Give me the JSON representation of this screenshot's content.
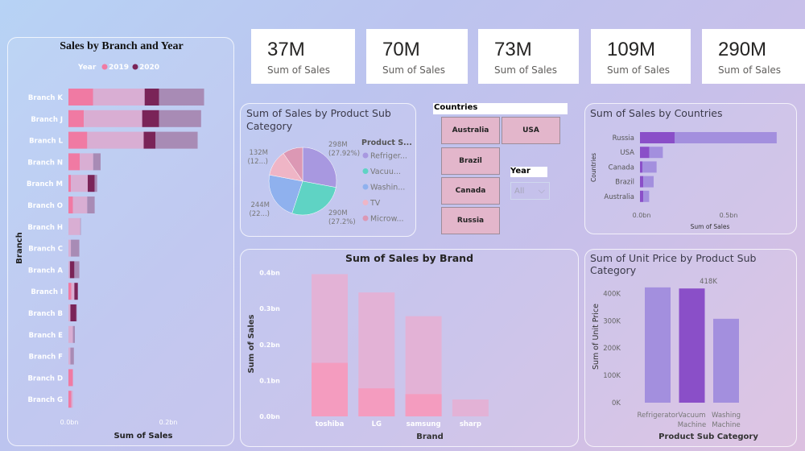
{
  "kpis": [
    {
      "value": "37M",
      "label": "Sum of Sales"
    },
    {
      "value": "70M",
      "label": "Sum of Sales"
    },
    {
      "value": "73M",
      "label": "Sum of Sales"
    },
    {
      "value": "109M",
      "label": "Sum of Sales"
    },
    {
      "value": "290M",
      "label": "Sum of Sales"
    }
  ],
  "slicers": {
    "countries_title": "Countries",
    "countries": [
      "Australia",
      "USA",
      "Brazil",
      "Canada",
      "Russia"
    ],
    "year_title": "Year",
    "year_value": "All"
  },
  "colors": {
    "y2019": "#f07aa3",
    "y2019_rest": "#d9aed3",
    "y2020": "#7a2458",
    "y2020_rest": "#a88bb5",
    "purple_dark": "#8a4fc8",
    "purple_light": "#a38fde",
    "pink": "#f49cbf",
    "pink_light": "#e3b2d6"
  },
  "chart_data": [
    {
      "type": "bar",
      "orientation": "horizontal",
      "stacked": true,
      "title": "Sales by Branch and Year",
      "xlabel": "Sum of Sales",
      "ylabel": "Branch",
      "legend_title": "Year",
      "legend": [
        "2019",
        "2020"
      ],
      "legend_position": "top",
      "xticks": [
        "0.0bn",
        "0.2bn"
      ],
      "xlim": [
        0,
        0.3
      ],
      "segment_order": [
        "2019 highlighted",
        "2019 other",
        "2020 highlighted",
        "2020 other"
      ],
      "categories": [
        "Branch K",
        "Branch J",
        "Branch L",
        "Branch N",
        "Branch M",
        "Branch O",
        "Branch H",
        "Branch C",
        "Branch A",
        "Branch I",
        "Branch B",
        "Branch E",
        "Branch F",
        "Branch D",
        "Branch G"
      ],
      "values": [
        [
          0.05,
          0.104,
          0.029,
          0.091
        ],
        [
          0.031,
          0.118,
          0.034,
          0.085
        ],
        [
          0.038,
          0.114,
          0.024,
          0.085
        ],
        [
          0.023,
          0.027,
          0,
          0.015
        ],
        [
          0.005,
          0.034,
          0.014,
          0.005
        ],
        [
          0.009,
          0.029,
          0,
          0.015
        ],
        [
          0,
          0.024,
          0,
          0.001
        ],
        [
          0,
          0.005,
          0,
          0.017
        ],
        [
          0,
          0.003,
          0.009,
          0.01
        ],
        [
          0.006,
          0.006,
          0.007,
          0
        ],
        [
          0,
          0.004,
          0.012,
          0.001
        ],
        [
          0,
          0.009,
          0,
          0.004
        ],
        [
          0,
          0.004,
          0,
          0.007
        ],
        [
          0.009,
          0,
          0,
          0
        ],
        [
          0.006,
          0.003,
          0,
          0
        ]
      ]
    },
    {
      "type": "pie",
      "title": "Sum of Sales by Product Sub Category",
      "legend_title": "Product S...",
      "legend_position": "right",
      "slices": [
        {
          "name": "Refriger...",
          "value": 298,
          "label": "298M",
          "pct": "(27.92%)",
          "color": "#a898e0"
        },
        {
          "name": "Vacuu...",
          "value": 290,
          "label": "290M",
          "pct": "(27.2%)",
          "color": "#5fd3c4"
        },
        {
          "name": "Washin...",
          "value": 244,
          "label": "244M",
          "pct": "(22...)",
          "color": "#8fb1ee"
        },
        {
          "name": "TV",
          "value": 132,
          "label": "132M",
          "pct": "(12...)",
          "color": "#efb5c6"
        },
        {
          "name": "Microw...",
          "value": 103,
          "color": "#dc98b4"
        }
      ]
    },
    {
      "type": "bar",
      "orientation": "horizontal",
      "stacked": true,
      "title": "Sum of Sales by Countries",
      "xlabel": "Sum of Sales",
      "ylabel": "Countries",
      "xticks": [
        "0.0bn",
        "0.5bn"
      ],
      "categories": [
        "Russia",
        "USA",
        "Canada",
        "Brazil",
        "Australia"
      ],
      "highlighted": [
        0.2,
        0.054,
        0.014,
        0.019,
        0.019
      ],
      "other": [
        0.59,
        0.078,
        0.082,
        0.06,
        0.034
      ]
    },
    {
      "type": "bar",
      "title": "Sum of Sales by Brand",
      "xlabel": "Brand",
      "ylabel": "Sum of Sales",
      "yticks": [
        "0.0bn",
        "0.1bn",
        "0.2bn",
        "0.3bn",
        "0.4bn"
      ],
      "ylim": [
        0,
        0.4
      ],
      "categories": [
        "toshiba",
        "LG",
        "samsung",
        "sharp"
      ],
      "totals": [
        0.396,
        0.345,
        0.279,
        0.047
      ],
      "highlighted": [
        0.149,
        0.078,
        0.062,
        0
      ]
    },
    {
      "type": "bar",
      "title": "Sum of Unit Price by Product Sub Category",
      "xlabel": "Product Sub Category",
      "ylabel": "Sum of Unit Price",
      "yticks": [
        "0K",
        "100K",
        "200K",
        "300K",
        "400K"
      ],
      "ylim": [
        0,
        400000
      ],
      "categories": [
        "Refrigerator",
        "Vacuum Machine",
        "Washing Machine"
      ],
      "values": [
        422000,
        418000,
        307000
      ],
      "highlighted_index": 1,
      "data_label": "418K"
    }
  ]
}
